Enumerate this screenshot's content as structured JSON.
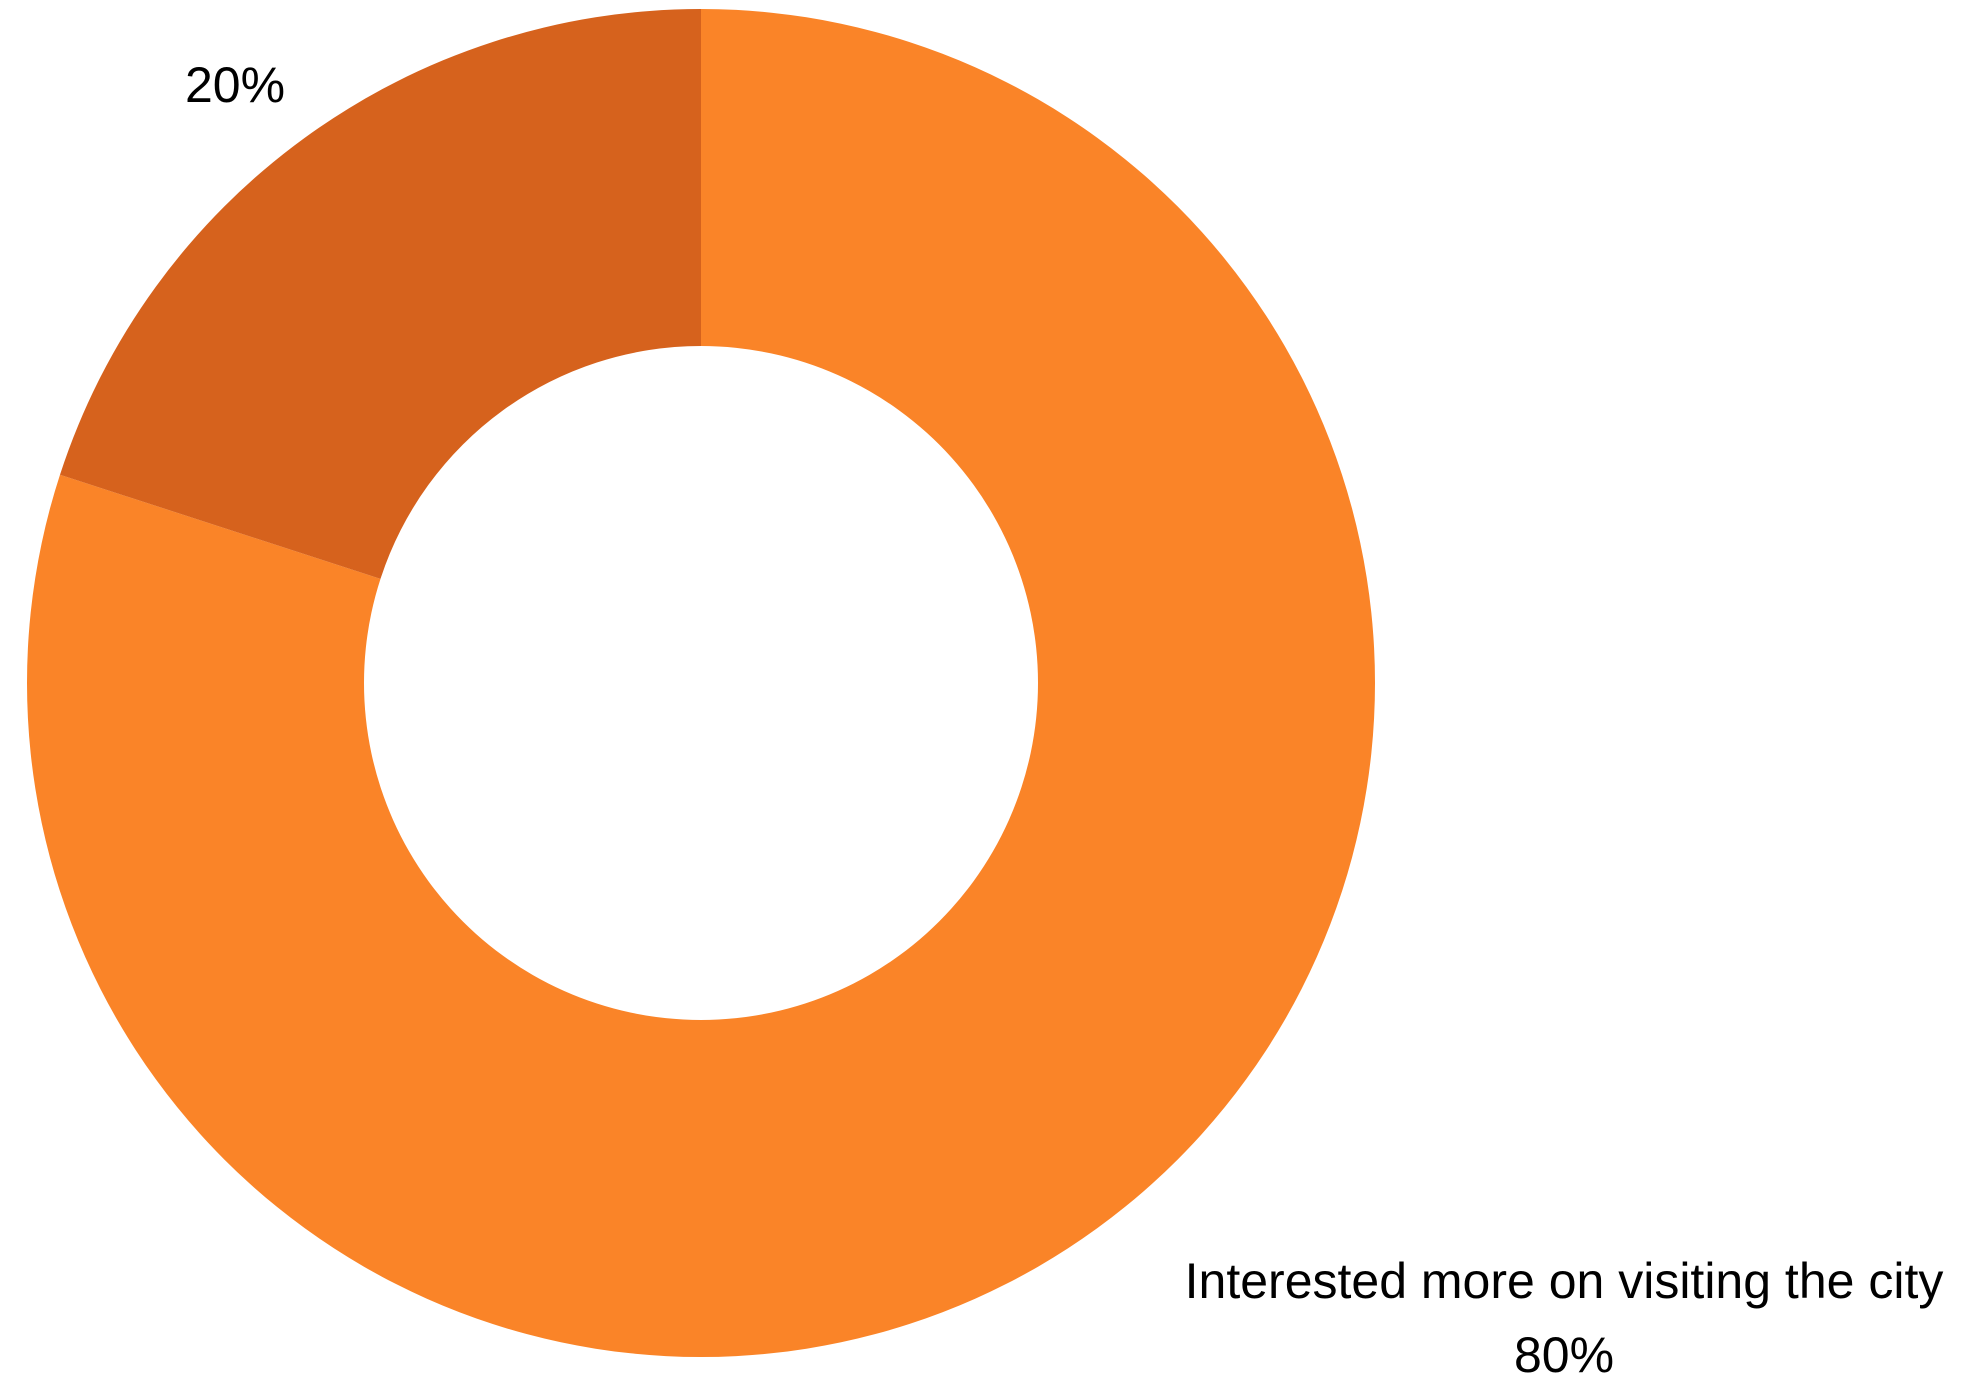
{
  "chart_data": {
    "type": "pie",
    "donut": true,
    "slices": [
      {
        "name": "Interested more on visiting the city",
        "value": 80,
        "label": "80%",
        "color": "#FA8428"
      },
      {
        "name": "",
        "value": 20,
        "label": "20%",
        "color": "#D6621D"
      }
    ]
  }
}
